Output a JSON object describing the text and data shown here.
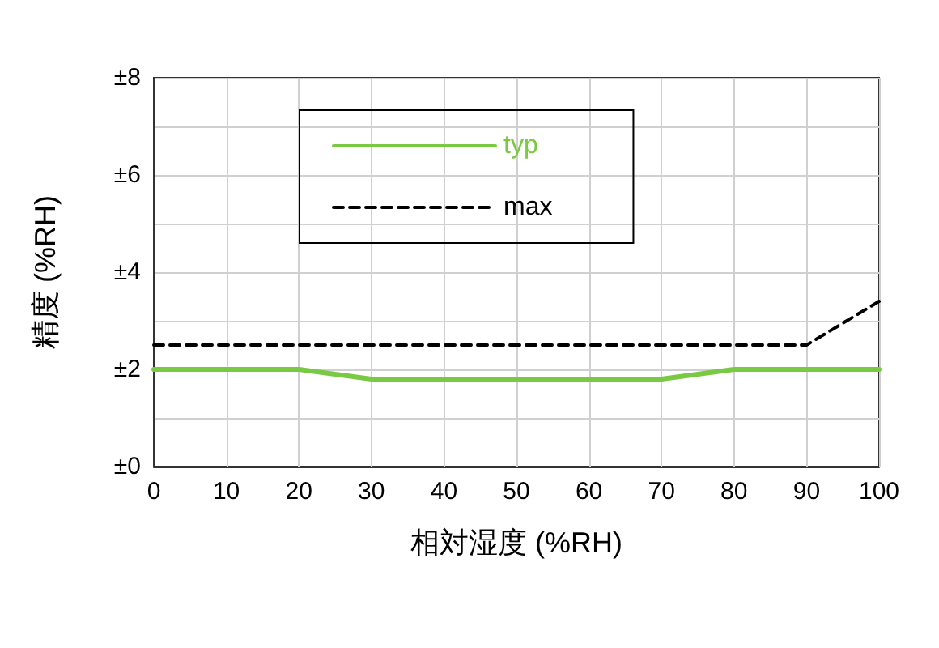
{
  "chart_data": {
    "type": "line",
    "xlabel": "相対湿度 (%RH)",
    "ylabel": "精度 (%RH)",
    "x": [
      0,
      10,
      20,
      30,
      40,
      50,
      60,
      70,
      80,
      90,
      100
    ],
    "series": [
      {
        "name": "typ",
        "color": "#7ac943",
        "line_style": "solid",
        "values": [
          2,
          2,
          2,
          1.8,
          1.8,
          1.8,
          1.8,
          1.8,
          2,
          2,
          2
        ]
      },
      {
        "name": "max",
        "color": "#000000",
        "line_style": "dashed",
        "values": [
          2.5,
          2.5,
          2.5,
          2.5,
          2.5,
          2.5,
          2.5,
          2.5,
          2.5,
          2.5,
          3.4
        ]
      }
    ],
    "xlim": [
      0,
      100
    ],
    "xticks": [
      0,
      10,
      20,
      30,
      40,
      50,
      60,
      70,
      80,
      90,
      100
    ],
    "ylim": [
      0,
      8
    ],
    "yticks": [
      {
        "value": 0,
        "label": "±0"
      },
      {
        "value": 1,
        "label": null
      },
      {
        "value": 2,
        "label": "±2"
      },
      {
        "value": 3,
        "label": null
      },
      {
        "value": 4,
        "label": "±4"
      },
      {
        "value": 5,
        "label": null
      },
      {
        "value": 6,
        "label": "±6"
      },
      {
        "value": 7,
        "label": null
      },
      {
        "value": 8,
        "label": "±8"
      }
    ],
    "grid": true,
    "legend": "top",
    "marker": "none"
  }
}
